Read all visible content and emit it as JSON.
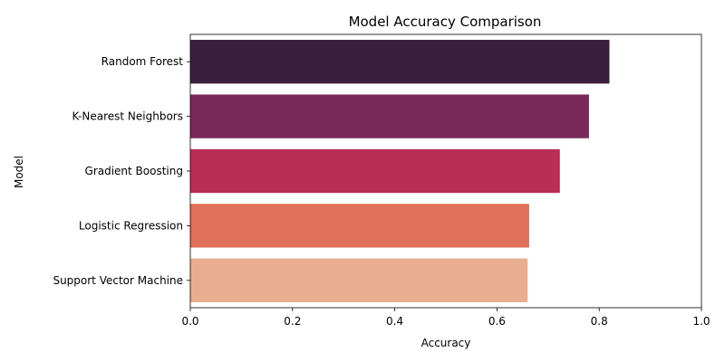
{
  "chart_data": {
    "type": "bar",
    "orientation": "horizontal",
    "title": "Model Accuracy Comparison",
    "xlabel": "Accuracy",
    "ylabel": "Model",
    "xlim": [
      0,
      1
    ],
    "xticks": [
      0.0,
      0.2,
      0.4,
      0.6,
      0.8,
      1.0
    ],
    "xtick_labels": [
      "0.0",
      "0.2",
      "0.4",
      "0.6",
      "0.8",
      "1.0"
    ],
    "grid": false,
    "categories": [
      "Random Forest",
      "K-Nearest Neighbors",
      "Gradient Boosting",
      "Logistic Regression",
      "Support Vector Machine"
    ],
    "values": [
      0.82,
      0.78,
      0.723,
      0.663,
      0.66
    ],
    "colors": [
      "#3b1f3e",
      "#7a2a5a",
      "#b92e56",
      "#e0705a",
      "#e9ae90"
    ]
  }
}
